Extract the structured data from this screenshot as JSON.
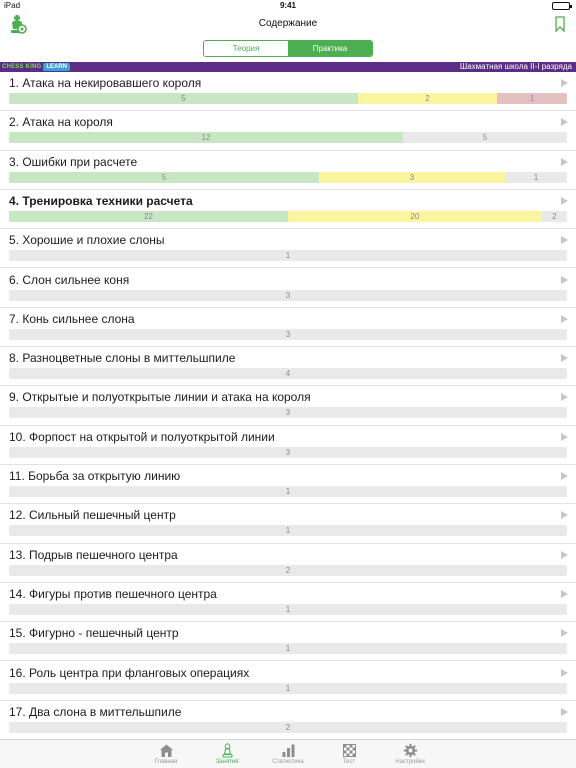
{
  "status_bar": {
    "carrier": "iPad",
    "time": "9:41"
  },
  "nav": {
    "title": "Содержание"
  },
  "segmented": {
    "options": [
      "Теория",
      "Практика"
    ],
    "selected": "Практика"
  },
  "banner": {
    "brand_chess": "CHESS KING",
    "brand_learn": "LEARN",
    "school": "Шахматная школа II-I разряда"
  },
  "colors": {
    "accent": "#4caf50",
    "banner": "#5c2d86",
    "green": "#c8e6c4",
    "yellow": "#fbf5a0",
    "red": "#e3c1c1",
    "gray": "#e9e9e9"
  },
  "lessons": [
    {
      "title": "1. Атака на некировавшего короля",
      "bold": false,
      "segments": [
        {
          "value": 5,
          "color": "green"
        },
        {
          "value": 2,
          "color": "yellow"
        },
        {
          "value": 1,
          "color": "red"
        }
      ]
    },
    {
      "title": "2. Атака на короля",
      "bold": false,
      "segments": [
        {
          "value": 12,
          "color": "green"
        },
        {
          "value": 5,
          "color": "gray"
        }
      ]
    },
    {
      "title": "3. Ошибки при расчете",
      "bold": false,
      "segments": [
        {
          "value": 5,
          "color": "green"
        },
        {
          "value": 3,
          "color": "yellow"
        },
        {
          "value": 1,
          "color": "gray"
        }
      ]
    },
    {
      "title": "4. Тренировка техники расчета",
      "bold": true,
      "segments": [
        {
          "value": 22,
          "color": "green"
        },
        {
          "value": 20,
          "color": "yellow"
        },
        {
          "value": 2,
          "color": "gray"
        }
      ]
    },
    {
      "title": "5. Хорошие и плохие слоны",
      "bold": false,
      "segments": [
        {
          "value": 1,
          "color": "gray"
        }
      ]
    },
    {
      "title": "6. Слон сильнее коня",
      "bold": false,
      "segments": [
        {
          "value": 3,
          "color": "gray"
        }
      ]
    },
    {
      "title": "7. Конь сильнее слона",
      "bold": false,
      "segments": [
        {
          "value": 3,
          "color": "gray"
        }
      ]
    },
    {
      "title": "8. Разноцветные слоны в миттельшпиле",
      "bold": false,
      "segments": [
        {
          "value": 4,
          "color": "gray"
        }
      ]
    },
    {
      "title": "9. Открытые и полуоткрытые линии и атака на короля",
      "bold": false,
      "segments": [
        {
          "value": 3,
          "color": "gray"
        }
      ]
    },
    {
      "title": "10. Форпост на открытой и полуоткрытой линии",
      "bold": false,
      "segments": [
        {
          "value": 3,
          "color": "gray"
        }
      ]
    },
    {
      "title": "11. Борьба за открытую линию",
      "bold": false,
      "segments": [
        {
          "value": 1,
          "color": "gray"
        }
      ]
    },
    {
      "title": "12. Сильный пешечный центр",
      "bold": false,
      "segments": [
        {
          "value": 1,
          "color": "gray"
        }
      ]
    },
    {
      "title": "13. Подрыв пешечного центра",
      "bold": false,
      "segments": [
        {
          "value": 2,
          "color": "gray"
        }
      ]
    },
    {
      "title": "14. Фигуры против пешечного центра",
      "bold": false,
      "segments": [
        {
          "value": 1,
          "color": "gray"
        }
      ]
    },
    {
      "title": "15. Фигурно - пешечный центр",
      "bold": false,
      "segments": [
        {
          "value": 1,
          "color": "gray"
        }
      ]
    },
    {
      "title": "16. Роль центра при фланговых операциях",
      "bold": false,
      "segments": [
        {
          "value": 1,
          "color": "gray"
        }
      ]
    },
    {
      "title": "17. Два слона в миттельшпиле",
      "bold": false,
      "segments": [
        {
          "value": 2,
          "color": "gray"
        }
      ]
    }
  ],
  "tabs": [
    {
      "label": "Главная",
      "icon": "home-icon",
      "active": false
    },
    {
      "label": "Занятия",
      "icon": "pawn-icon",
      "active": true
    },
    {
      "label": "Статистика",
      "icon": "bar-chart-icon",
      "active": false
    },
    {
      "label": "Тест",
      "icon": "chessboard-icon",
      "active": false
    },
    {
      "label": "Настройки",
      "icon": "gear-icon",
      "active": false
    }
  ]
}
